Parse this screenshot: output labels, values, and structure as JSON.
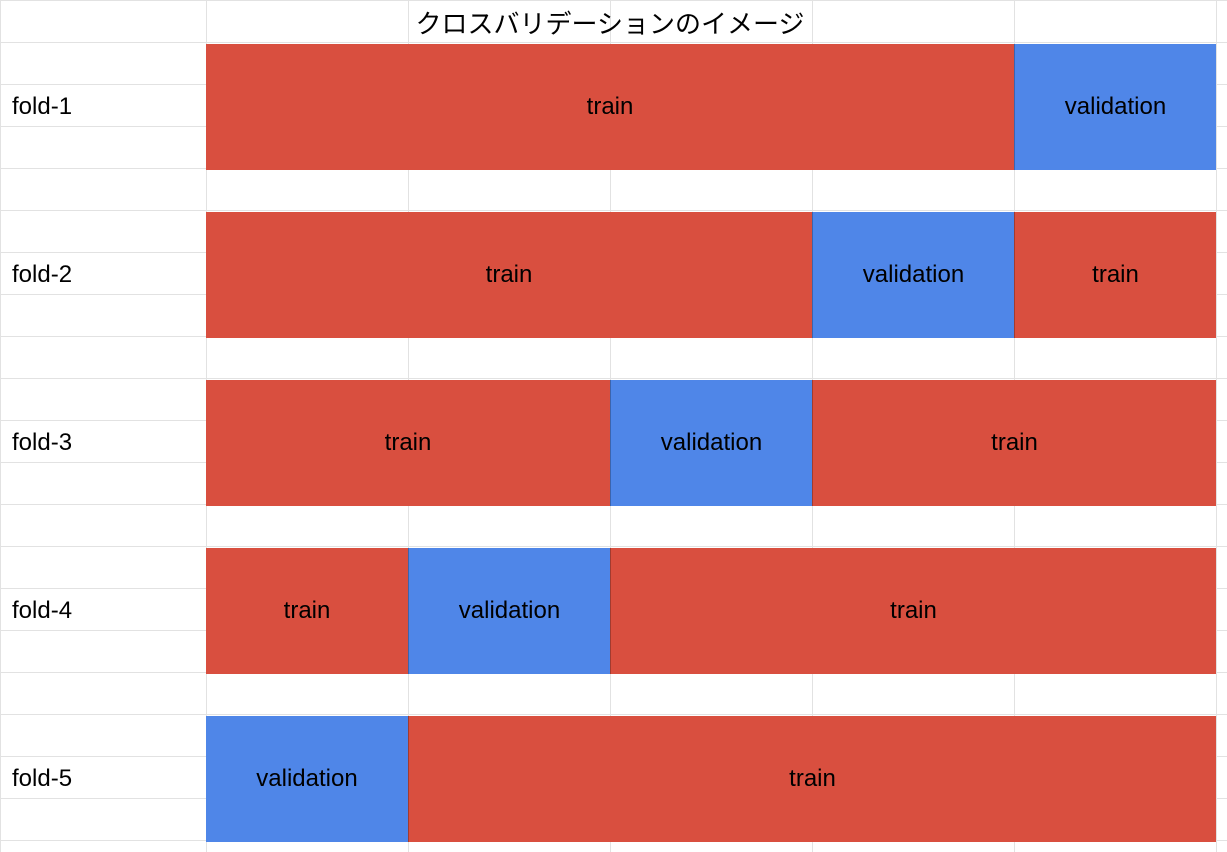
{
  "title": "クロスバリデーションのイメージ",
  "colors": {
    "train": "#d94f3f",
    "validation": "#4f86e8",
    "gridline": "#e2e2e2"
  },
  "folds": [
    {
      "label": "fold-1",
      "segments": [
        {
          "label": "train",
          "kind": "train",
          "span": 4
        },
        {
          "label": "validation",
          "kind": "validation",
          "span": 1
        }
      ]
    },
    {
      "label": "fold-2",
      "segments": [
        {
          "label": "train",
          "kind": "train",
          "span": 3
        },
        {
          "label": "validation",
          "kind": "validation",
          "span": 1
        },
        {
          "label": "train",
          "kind": "train",
          "span": 1
        }
      ]
    },
    {
      "label": "fold-3",
      "segments": [
        {
          "label": "train",
          "kind": "train",
          "span": 2
        },
        {
          "label": "validation",
          "kind": "validation",
          "span": 1
        },
        {
          "label": "train",
          "kind": "train",
          "span": 2
        }
      ]
    },
    {
      "label": "fold-4",
      "segments": [
        {
          "label": "train",
          "kind": "train",
          "span": 1
        },
        {
          "label": "validation",
          "kind": "validation",
          "span": 1
        },
        {
          "label": "train",
          "kind": "train",
          "span": 3
        }
      ]
    },
    {
      "label": "fold-5",
      "segments": [
        {
          "label": "validation",
          "kind": "validation",
          "span": 1
        },
        {
          "label": "train",
          "kind": "train",
          "span": 4
        }
      ]
    }
  ]
}
